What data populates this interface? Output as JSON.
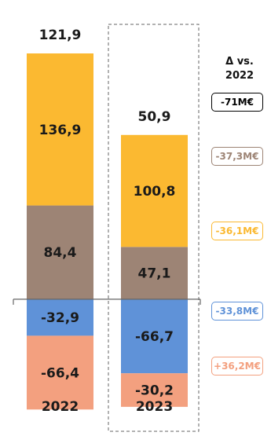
{
  "chart_data": {
    "type": "bar",
    "stacked": true,
    "categories": [
      "2022",
      "2023"
    ],
    "series": [
      {
        "color": "#9d8475",
        "values": [
          84.4,
          47.1
        ],
        "labels": [
          "84,4",
          "47,1"
        ]
      },
      {
        "color": "#fbb931",
        "values": [
          136.9,
          100.8
        ],
        "labels": [
          "136,9",
          "100,8"
        ]
      },
      {
        "color": "#5f92d8",
        "values": [
          -32.9,
          -66.7
        ],
        "labels": [
          "-32,9",
          "-66,7"
        ]
      },
      {
        "color": "#f3a07f",
        "values": [
          -66.4,
          -30.2
        ],
        "labels": [
          "-66,4",
          "-30,2"
        ]
      }
    ],
    "totals": [
      121.9,
      50.9
    ],
    "total_labels": [
      "121,9",
      "50,9"
    ],
    "ylim": [
      -99.1,
      221.3
    ]
  },
  "delta_panel": {
    "title_line1": "Δ vs.",
    "title_line2": "2022",
    "total": {
      "text": "-71M€",
      "color": "#000000"
    },
    "items": [
      {
        "text": "-37,3M€",
        "color": "#9d8475"
      },
      {
        "text": "-36,1M€",
        "color": "#fbb931"
      },
      {
        "text": "-33,8M€",
        "color": "#5f92d8"
      },
      {
        "text": "+36,2M€",
        "color": "#f3a07f"
      }
    ]
  },
  "colors": {
    "highlight_box": "#666666",
    "axis": "#666666"
  }
}
